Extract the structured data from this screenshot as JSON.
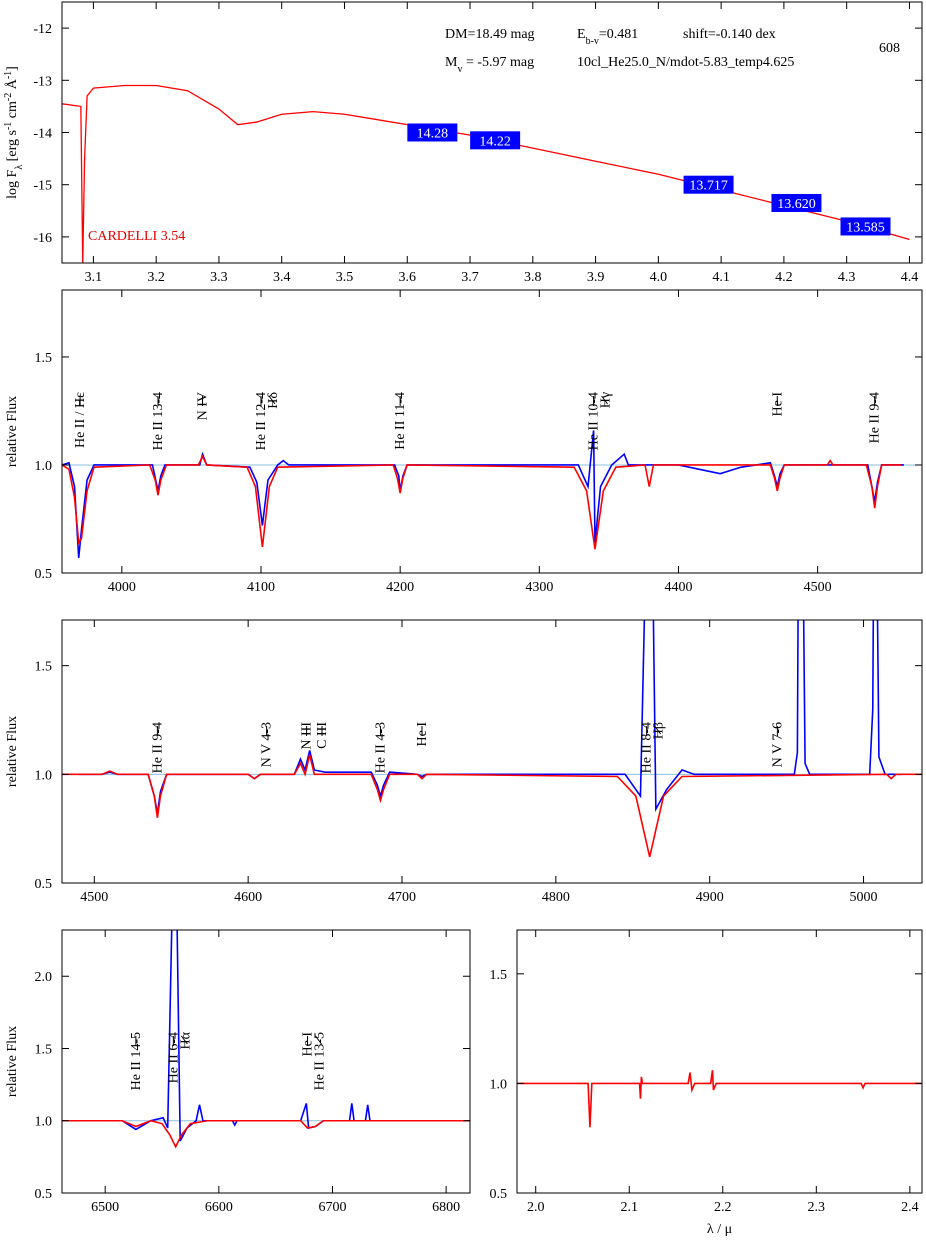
{
  "chart_data": [
    {
      "type": "sed",
      "ylabel": [
        {
          "text": "log F"
        },
        {
          "text": "λ",
          "shift": "sub"
        },
        {
          "text": " [erg s"
        },
        {
          "text": "-1",
          "shift": "super"
        },
        {
          "text": " cm"
        },
        {
          "text": "-2",
          "shift": "super"
        },
        {
          "text": " Å"
        },
        {
          "text": "-1",
          "shift": "super"
        },
        {
          "text": "]"
        }
      ],
      "xlim": [
        3.05,
        4.42
      ],
      "xticks": [
        3.1,
        3.2,
        3.3,
        3.4,
        3.5,
        3.6,
        3.7,
        3.8,
        3.9,
        {
          "value": 4,
          "label": "4.0"
        },
        4.1,
        4.2,
        4.3,
        4.4
      ],
      "ylim": [
        -16.5,
        -11.5
      ],
      "yticks": [
        -16,
        -15,
        -14,
        -13,
        -12
      ],
      "series": [
        {
          "color": "#ff0000",
          "x": [
            3.05,
            3.08,
            3.083,
            3.086,
            3.09,
            3.1,
            3.15,
            3.2,
            3.25,
            3.3,
            3.33,
            3.36,
            3.4,
            3.45,
            3.5,
            3.6,
            3.7,
            3.8,
            3.9,
            4.0,
            4.1,
            4.2,
            4.3,
            4.4
          ],
          "values": [
            -13.45,
            -13.5,
            -16.5,
            -14.5,
            -13.3,
            -13.15,
            -13.1,
            -13.1,
            -13.2,
            -13.55,
            -13.85,
            -13.8,
            -13.65,
            -13.6,
            -13.65,
            -13.85,
            -14.05,
            -14.3,
            -14.55,
            -14.8,
            -15.1,
            -15.4,
            -15.7,
            -16.05
          ]
        }
      ],
      "photometry": {
        "color": "#0000ff",
        "x": [
          3.64,
          3.74,
          4.08,
          4.22,
          4.33
        ],
        "flux": [
          -14.0,
          -14.15,
          -15.0,
          -15.35,
          -15.8
        ],
        "magnitudes": [
          14.28,
          14.22,
          13.717,
          {
            "value": 13.62,
            "label": "13.620"
          },
          13.585
        ]
      },
      "annotations": [
        [
          {
            "text": "DM=18.49 mag"
          }
        ],
        [
          {
            "text": "E"
          },
          {
            "text": "b-v",
            "shift": "sub"
          },
          {
            "text": "=0.481"
          }
        ],
        [
          {
            "text": "shift=-0.140 dex"
          }
        ],
        [
          {
            "text": "608"
          }
        ],
        [
          {
            "text": "M"
          },
          {
            "text": "v",
            "shift": "sub"
          },
          {
            "text": " =  -5.97 mag"
          }
        ],
        [
          {
            "text": "10cl_He25.0_N/mdot-5.83_temp4.625"
          }
        ],
        [
          {
            "text": "CARDELLI 3.54"
          }
        ]
      ]
    },
    {
      "type": "spectrum",
      "ylabel": [
        {
          "text": "relative Flux"
        }
      ],
      "xlim": [
        3957,
        4575
      ],
      "xticks": [
        4000,
        4100,
        4200,
        4300,
        4400,
        4500
      ],
      "ylim": [
        0.5,
        1.81
      ],
      "yticks": [
        0.5,
        {
          "value": 1,
          "label": "1.0"
        },
        1.5
      ],
      "hline": 1,
      "series": [
        {
          "color": "#0000ff",
          "x": [
            3957,
            3962,
            3966,
            3969,
            3971,
            3975,
            3980,
            4022,
            4024,
            4026,
            4028,
            4031,
            4056,
            4058,
            4061,
            4092,
            4097,
            4101,
            4105,
            4112,
            4116,
            4120,
            4196,
            4199,
            4200,
            4202,
            4205,
            4328,
            4335,
            4339,
            4340,
            4344,
            4352,
            4361,
            4364,
            4400,
            4415,
            4430,
            4445,
            4466,
            4469,
            4471,
            4473,
            4476,
            4536,
            4539,
            4541,
            4543,
            4546,
            4562
          ],
          "values": [
            1.0,
            1.01,
            0.9,
            0.57,
            0.7,
            0.93,
            1.0,
            1.0,
            0.94,
            0.88,
            0.95,
            1.0,
            1.0,
            1.05,
            1.0,
            0.99,
            0.92,
            0.72,
            0.93,
            1.0,
            1.02,
            1.0,
            1.0,
            0.95,
            0.88,
            0.95,
            1.0,
            1.0,
            0.9,
            1.16,
            0.64,
            0.9,
            1.0,
            1.05,
            1.0,
            1.0,
            0.98,
            0.96,
            0.99,
            1.01,
            0.95,
            0.9,
            0.96,
            1.0,
            1.0,
            0.9,
            0.83,
            0.92,
            1.0,
            1.0
          ]
        },
        {
          "color": "#ff0000",
          "x": [
            3957,
            3962,
            3966,
            3969,
            3971,
            3975,
            3980,
            4020,
            4024,
            4026,
            4028,
            4032,
            4055,
            4058,
            4061,
            4090,
            4096,
            4101,
            4106,
            4112,
            4195,
            4198,
            4200,
            4202,
            4205,
            4325,
            4334,
            4340,
            4346,
            4355,
            4376,
            4379,
            4382,
            4466,
            4469,
            4471,
            4473,
            4476,
            4507,
            4509,
            4511,
            4535,
            4539,
            4541,
            4543,
            4546,
            4560
          ],
          "values": [
            1.0,
            0.98,
            0.85,
            0.64,
            0.66,
            0.88,
            0.99,
            1.0,
            0.93,
            0.86,
            0.93,
            1.0,
            1.0,
            1.04,
            1.0,
            0.99,
            0.9,
            0.62,
            0.9,
            0.99,
            1.0,
            0.94,
            0.87,
            0.94,
            1.0,
            0.99,
            0.88,
            0.61,
            0.88,
            0.99,
            1.0,
            0.9,
            1.0,
            1.0,
            0.94,
            0.88,
            0.94,
            1.0,
            1.0,
            1.02,
            1.0,
            1.0,
            0.9,
            0.8,
            0.9,
            1.0,
            1.0
          ]
        }
      ],
      "line_labels": [
        {
          "label": "He II / Hε",
          "x": 3970
        },
        {
          "label": "He II 13-4",
          "x": 4026
        },
        {
          "label": "N IV",
          "x": 4058
        },
        {
          "label": "He II 12-4",
          "x": 4100
        },
        {
          "label": "Hδ",
          "x": 4102
        },
        {
          "label": "He II 11-4",
          "x": 4200
        },
        {
          "label": "He II 10-4",
          "x": 4339
        },
        {
          "label": "Hγ",
          "x": 4340
        },
        {
          "label": "He I",
          "x": 4471
        },
        {
          "label": "He II 9-4",
          "x": 4541
        }
      ]
    },
    {
      "type": "spectrum",
      "ylabel": [
        {
          "text": "relative Flux"
        }
      ],
      "xlim": [
        4479,
        5038
      ],
      "xticks": [
        4500,
        4600,
        4700,
        4800,
        4900,
        5000
      ],
      "ylim": [
        0.5,
        1.71
      ],
      "yticks": [
        0.5,
        {
          "value": 1,
          "label": "1.0"
        },
        1.5
      ],
      "hline": 1,
      "series": [
        {
          "color": "#0000ff",
          "x": [
            4490,
            4505,
            4510,
            4515,
            4535,
            4539,
            4541,
            4543,
            4547,
            4600,
            4604,
            4608,
            4630,
            4634,
            4637,
            4640,
            4643,
            4650,
            4680,
            4684,
            4686,
            4688,
            4692,
            4710,
            4713,
            4716,
            4800,
            4845,
            4855,
            4860,
            4862,
            4865,
            4872,
            4882,
            4890,
            4955,
            4957,
            4958,
            4960,
            4962,
            4965,
            5004,
            5006,
            5007,
            5008,
            5010,
            5014,
            5025
          ],
          "values": [
            1.0,
            1.0,
            1.01,
            1.0,
            1.0,
            0.9,
            0.82,
            0.92,
            1.0,
            1.0,
            0.98,
            1.0,
            1.0,
            1.07,
            1.02,
            1.11,
            1.02,
            1.01,
            1.01,
            0.95,
            0.9,
            0.95,
            1.01,
            1.0,
            0.99,
            1.0,
            1.0,
            1.0,
            0.9,
            2.5,
            2.5,
            0.84,
            0.93,
            1.02,
            1.0,
            1.0,
            1.1,
            2.5,
            2.5,
            1.05,
            1.0,
            1.0,
            1.3,
            2.5,
            2.5,
            1.08,
            1.0,
            1.0
          ]
        },
        {
          "color": "#ff0000",
          "x": [
            4479,
            4505,
            4510,
            4515,
            4535,
            4539,
            4541,
            4543,
            4547,
            4600,
            4604,
            4608,
            4630,
            4634,
            4637,
            4640,
            4643,
            4680,
            4684,
            4686,
            4688,
            4692,
            4710,
            4713,
            4716,
            4840,
            4852,
            4861,
            4870,
            4882,
            5015,
            5018,
            5021,
            5038
          ],
          "values": [
            1.0,
            1.0,
            1.015,
            1.0,
            1.0,
            0.9,
            0.8,
            0.9,
            1.0,
            1.0,
            0.98,
            1.0,
            1.0,
            1.05,
            1.0,
            1.09,
            1.0,
            1.0,
            0.93,
            0.88,
            0.93,
            1.0,
            1.0,
            0.98,
            1.0,
            0.99,
            0.9,
            0.62,
            0.9,
            0.99,
            1.0,
            0.98,
            1.0,
            1.0
          ]
        }
      ],
      "line_labels": [
        {
          "label": "He II 9-4",
          "x": 4541
        },
        {
          "label": "N V 4-3",
          "x": 4612
        },
        {
          "label": "N III",
          "x": 4638
        },
        {
          "label": "C III",
          "x": 4648
        },
        {
          "label": "He II 4-3",
          "x": 4686
        },
        {
          "label": "He I",
          "x": 4713
        },
        {
          "label": "He II 8-4",
          "x": 4859
        },
        {
          "label": "Hβ",
          "x": 4861
        },
        {
          "label": "N V 7-6",
          "x": 4944
        }
      ]
    },
    {
      "type": "spectrum",
      "ylabel": [
        {
          "text": "relative Flux"
        }
      ],
      "xlim": [
        6462,
        6821
      ],
      "xticks": [
        6500,
        6600,
        6700,
        6800
      ],
      "ylim": [
        0.5,
        2.32
      ],
      "yticks": [
        0.5,
        {
          "value": 1,
          "label": "1.0"
        },
        1.5,
        {
          "value": 2,
          "label": "2.0"
        }
      ],
      "hline": 1,
      "series": [
        {
          "color": "#0000ff",
          "x": [
            6462,
            6515,
            6527,
            6540,
            6551,
            6555,
            6559,
            6563,
            6566,
            6572,
            6580,
            6583,
            6586,
            6612,
            6614,
            6616,
            6672,
            6677,
            6679,
            6685,
            6692,
            6715,
            6717,
            6719,
            6729,
            6731,
            6733,
            6821
          ],
          "values": [
            1.0,
            1.0,
            0.94,
            1.0,
            1.02,
            0.95,
            2.5,
            2.5,
            0.86,
            0.95,
            1.0,
            1.11,
            1.0,
            1.0,
            0.97,
            1.0,
            1.0,
            1.12,
            0.95,
            0.96,
            1.0,
            1.0,
            1.12,
            1.0,
            1.0,
            1.11,
            1.0,
            1.0
          ]
        },
        {
          "color": "#ff0000",
          "x": [
            6462,
            6515,
            6527,
            6540,
            6550,
            6557,
            6562,
            6567,
            6575,
            6590,
            6672,
            6678,
            6685,
            6692,
            6821
          ],
          "values": [
            1.0,
            1.0,
            0.96,
            1.0,
            0.98,
            0.9,
            0.82,
            0.9,
            0.98,
            1.0,
            1.0,
            0.95,
            0.96,
            1.0,
            1.0
          ]
        }
      ],
      "line_labels": [
        {
          "label": "He II 14-5",
          "x": 6527
        },
        {
          "label": "He II 6-4",
          "x": 6560
        },
        {
          "label": "Hα",
          "x": 6563
        },
        {
          "label": "He I",
          "x": 6678
        },
        {
          "label": "He II 13-5",
          "x": 6683
        }
      ]
    },
    {
      "type": "spectrum",
      "xlabel": "λ / μ",
      "xlim": [
        1.98,
        2.413
      ],
      "xticks": [
        {
          "value": 2,
          "label": "2.0"
        },
        2.1,
        2.2,
        2.3,
        2.4
      ],
      "ylim": [
        0.5,
        1.7
      ],
      "yticks": [
        0.5,
        {
          "value": 1,
          "label": "1.0"
        },
        1.5
      ],
      "series": [
        {
          "color": "#ff0000",
          "x": [
            1.98,
            2.056,
            2.058,
            2.06,
            2.111,
            2.112,
            2.113,
            2.114,
            2.163,
            2.165,
            2.167,
            2.17,
            2.187,
            2.189,
            2.19,
            2.193,
            2.348,
            2.35,
            2.352,
            2.413
          ],
          "values": [
            1.0,
            1.0,
            0.8,
            1.0,
            1.0,
            0.93,
            1.03,
            1.0,
            1.0,
            1.05,
            0.97,
            1.0,
            1.0,
            1.06,
            0.97,
            1.0,
            1.0,
            0.98,
            1.0,
            1.0
          ]
        }
      ]
    }
  ]
}
